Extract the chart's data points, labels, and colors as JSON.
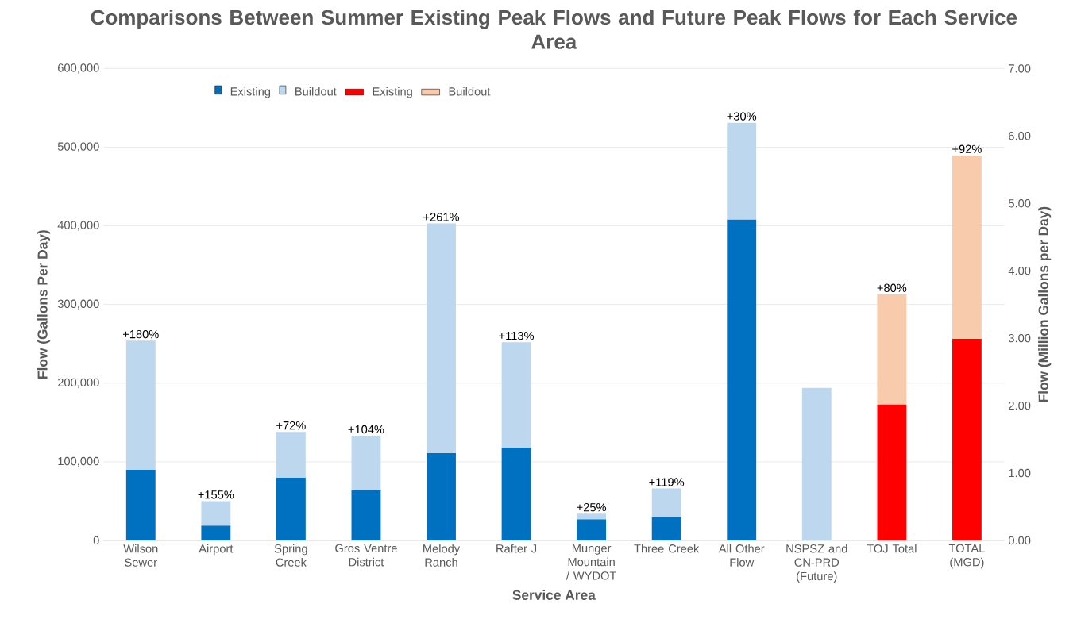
{
  "chart_data": {
    "type": "bar",
    "stacked": true,
    "title": "Comparisons Between Summer Existing Peak Flows and Future Peak Flows for Each Service Area",
    "xlabel": "Service Area",
    "ylabel": "Flow (Gallons Per Day)",
    "y2label": "Flow (Million Gallons per Day)",
    "categories": [
      "Wilson Sewer",
      "Airport",
      "Spring Creek",
      "Gros Ventre District",
      "Melody Ranch",
      "Rafter J",
      "Munger Mountain / WYDOT",
      "Three Creek",
      "All Other Flow",
      "NSPSZ and CN-PRD (Future)",
      "TOJ Total",
      "TOTAL (MGD)"
    ],
    "series": [
      {
        "name": "Existing",
        "color": "#0070c0",
        "values": [
          90000,
          19000,
          80000,
          64000,
          111000,
          118000,
          27000,
          30000,
          408000,
          null,
          null,
          null
        ]
      },
      {
        "name": "Buildout",
        "color": "#bdd7ee",
        "values": [
          164000,
          31000,
          58000,
          69000,
          292000,
          134000,
          7000,
          36000,
          123000,
          194000,
          null,
          null
        ]
      },
      {
        "name": "Existing",
        "color": "#ff0000",
        "axis": "y2",
        "values": [
          null,
          null,
          null,
          null,
          null,
          null,
          null,
          null,
          null,
          null,
          2.02,
          2.99
        ]
      },
      {
        "name": "Buildout",
        "color": "#f8cbad",
        "axis": "y2",
        "values": [
          null,
          null,
          null,
          null,
          null,
          null,
          null,
          null,
          null,
          null,
          1.63,
          2.72
        ]
      }
    ],
    "ylim": [
      0,
      600000
    ],
    "yticks": [
      {
        "value": 0,
        "label": "0"
      },
      {
        "value": 100000,
        "label": "100,000"
      },
      {
        "value": 200000,
        "label": "200,000"
      },
      {
        "value": 300000,
        "label": "300,000"
      },
      {
        "value": 400000,
        "label": "400,000"
      },
      {
        "value": 500000,
        "label": "500,000"
      },
      {
        "value": 600000,
        "label": "600,000"
      }
    ],
    "y2lim": [
      0,
      7
    ],
    "y2ticks": [
      {
        "value": 0,
        "label": "0.00"
      },
      {
        "value": 1,
        "label": "1.00"
      },
      {
        "value": 2,
        "label": "2.00"
      },
      {
        "value": 3,
        "label": "3.00"
      },
      {
        "value": 4,
        "label": "4.00"
      },
      {
        "value": 5,
        "label": "5.00"
      },
      {
        "value": 6,
        "label": "6.00"
      },
      {
        "value": 7,
        "label": "7.00"
      }
    ],
    "annotations": [
      {
        "text": "+180%",
        "x": "Wilson Sewer",
        "y": 254000
      },
      {
        "text": "+155%",
        "x": "Airport",
        "y": 50000
      },
      {
        "text": "+72%",
        "x": "Spring Creek",
        "y": 138000
      },
      {
        "text": "+104%",
        "x": "Gros Ventre District",
        "y": 133000
      },
      {
        "text": "+261%",
        "x": "Melody Ranch",
        "y": 403000
      },
      {
        "text": "+113%",
        "x": "Rafter J",
        "y": 252000
      },
      {
        "text": "+25%",
        "x": "Munger Mountain / WYDOT",
        "y": 34000
      },
      {
        "text": "+119%",
        "x": "Three Creek",
        "y": 66000
      },
      {
        "text": "+30%",
        "x": "All Other Flow",
        "y": 531000
      },
      "+80%",
      "+92%"
    ],
    "grid": "y",
    "legend": "top left"
  }
}
